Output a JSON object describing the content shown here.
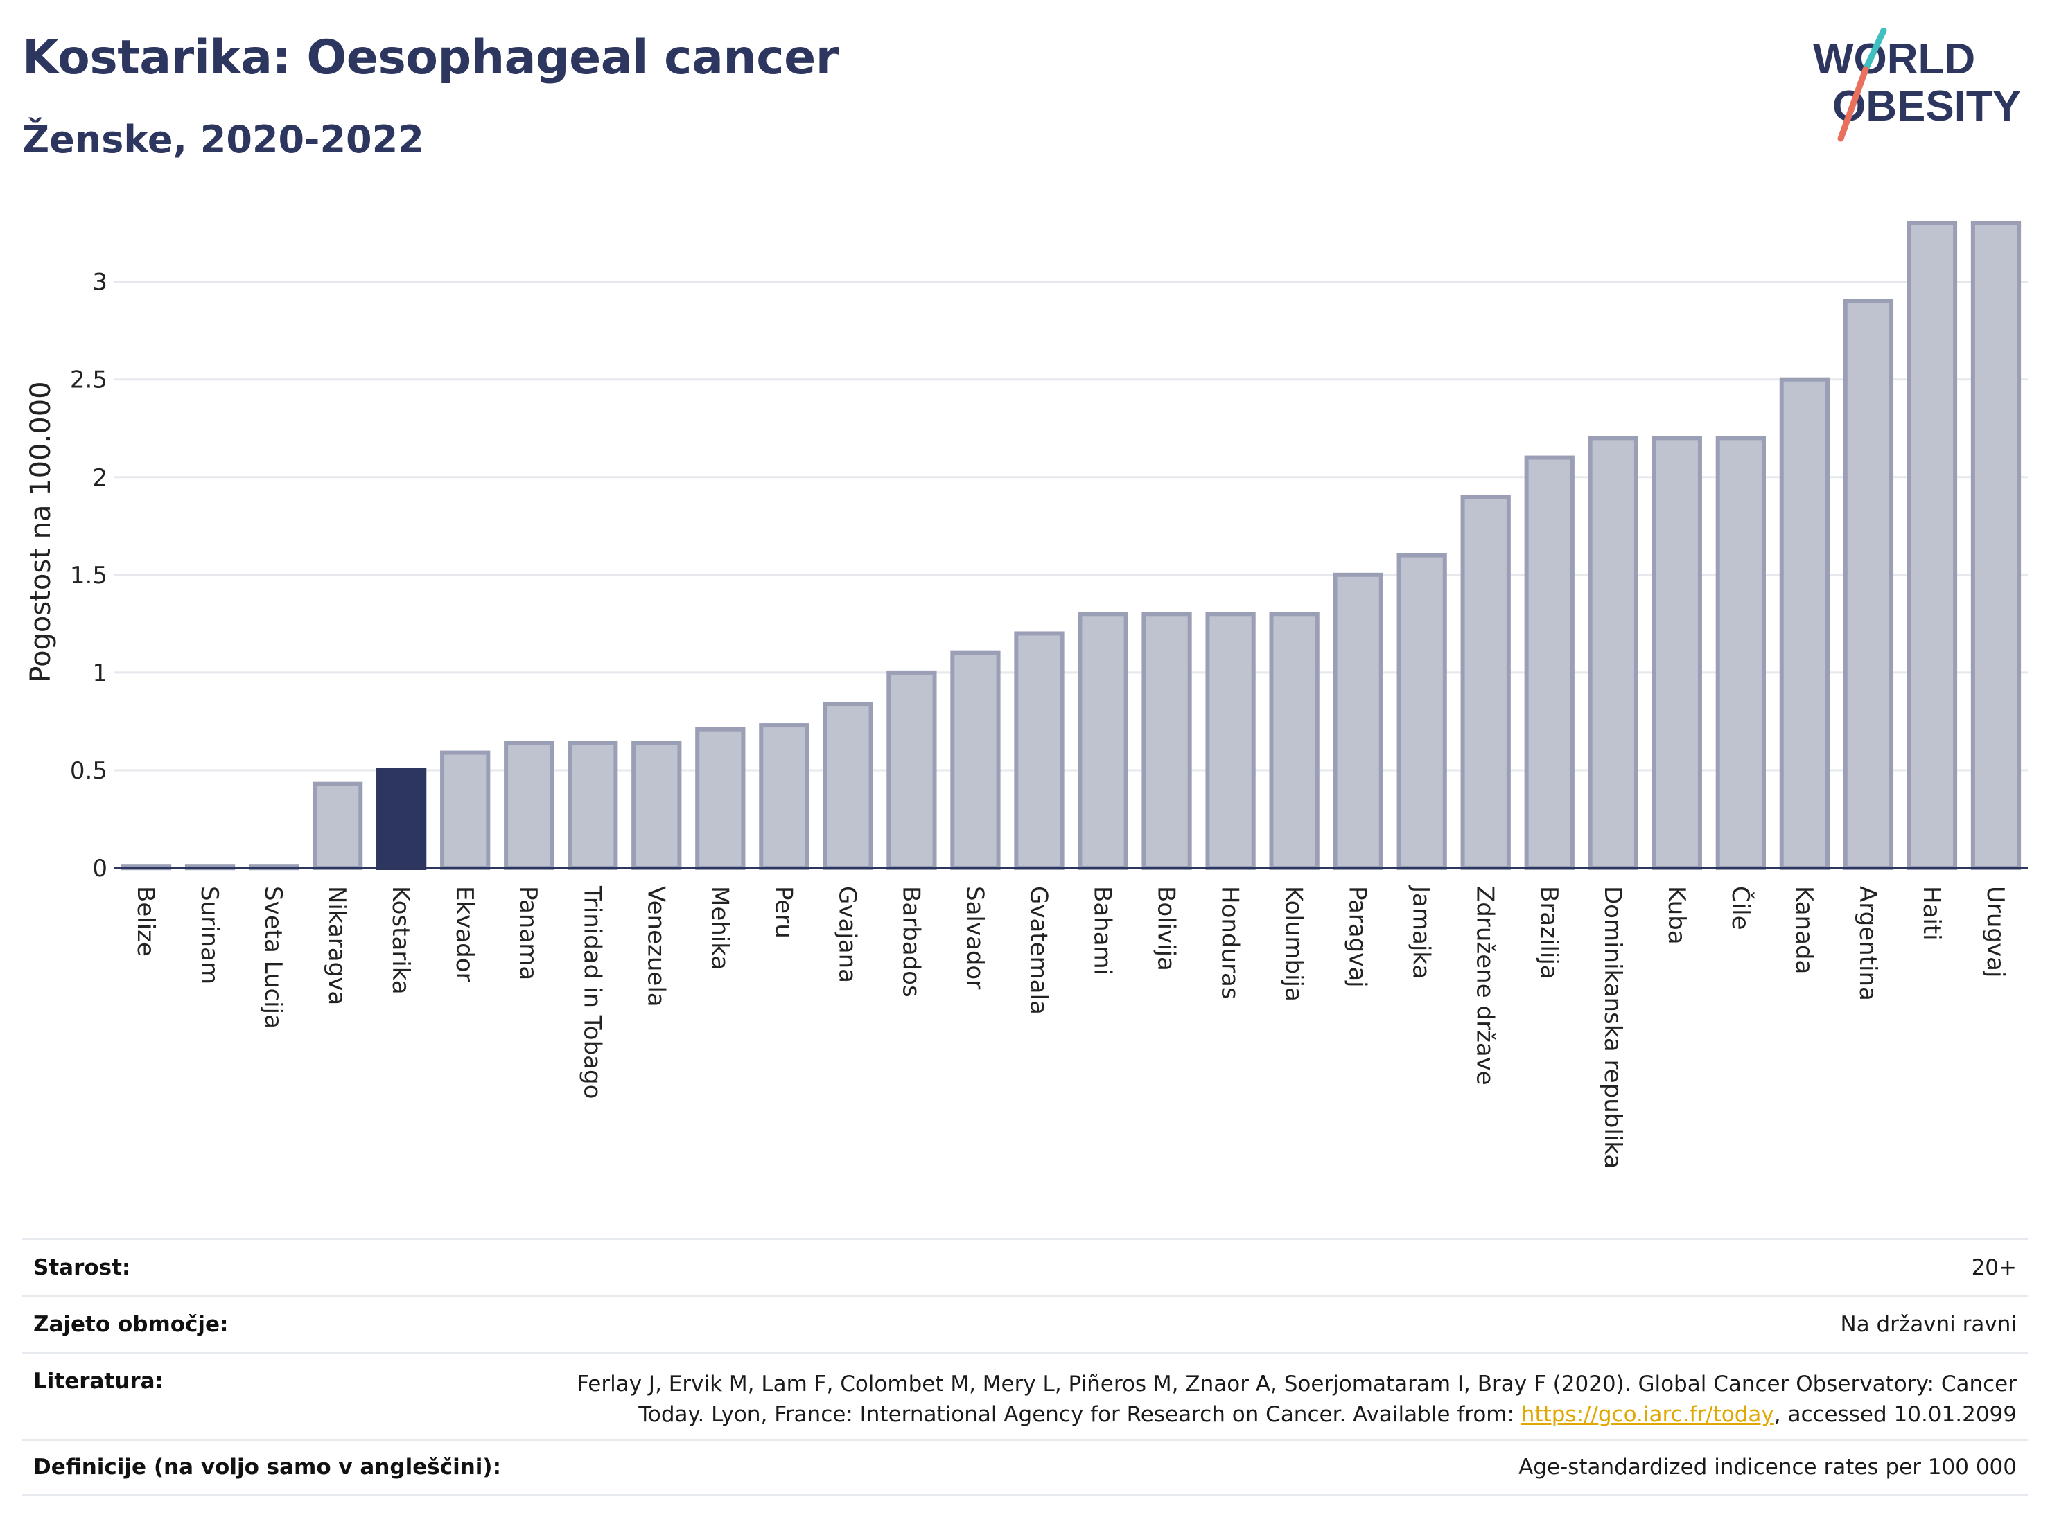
{
  "header": {
    "title": "Kostarika: Oesophageal cancer",
    "subtitle": "Ženske, 2020-2022"
  },
  "logo": {
    "line1": "WORLD",
    "line2": "OBESITY"
  },
  "chart_data": {
    "type": "bar",
    "title": "Kostarika: Oesophageal cancer",
    "subtitle": "Ženske, 2020-2022",
    "xlabel": "",
    "ylabel": "Pogostost na 100.000",
    "ylim": [
      0,
      3.3
    ],
    "yticks": [
      0,
      0.5,
      1,
      1.5,
      2,
      2.5,
      3
    ],
    "ytick_labels": [
      "0",
      "0.5",
      "1",
      "1.5",
      "2",
      "2.5",
      "3"
    ],
    "grid": true,
    "highlight": "Kostarika",
    "colors": {
      "bar": "#bfc2cf",
      "bar_stroke": "#9a9fb6",
      "highlight": "#2d365f",
      "grid": "#e6e8ee",
      "axis": "#2d365f"
    },
    "categories": [
      "Belize",
      "Surinam",
      "Sveta Lucija",
      "Nikaragva",
      "Kostarika",
      "Ekvador",
      "Panama",
      "Trinidad in Tobago",
      "Venezuela",
      "Mehika",
      "Peru",
      "Gvajana",
      "Barbados",
      "Salvador",
      "Gvatemala",
      "Bahami",
      "Bolivija",
      "Honduras",
      "Kolumbija",
      "Paragvaj",
      "Jamajka",
      "Združene države",
      "Brazilija",
      "Dominikanska republika",
      "Kuba",
      "Čile",
      "Kanada",
      "Argentina",
      "Haiti",
      "Urugvaj"
    ],
    "values": [
      0.01,
      0.01,
      0.01,
      0.43,
      0.5,
      0.59,
      0.64,
      0.64,
      0.64,
      0.71,
      0.73,
      0.84,
      1.0,
      1.1,
      1.2,
      1.3,
      1.3,
      1.3,
      1.3,
      1.5,
      1.6,
      1.9,
      2.1,
      2.2,
      2.2,
      2.2,
      2.5,
      2.9,
      3.3,
      3.3
    ]
  },
  "meta": {
    "age_label": "Starost:",
    "age_value": "20+",
    "area_label": "Zajeto območje:",
    "area_value": "Na državni ravni",
    "lit_label": "Literatura:",
    "lit_text_1": "Ferlay J, Ervik M, Lam F, Colombet M, Mery L, Piñeros M, Znaor A, Soerjomataram I, Bray F (2020). Global Cancer Observatory: Cancer",
    "lit_text_2a": "Today. Lyon, France: International Agency for Research on Cancer. Available from: ",
    "lit_link": "https://gco.iarc.fr/today",
    "lit_text_2b": ", accessed 10.01.2099",
    "def_label": "Definicije (na voljo samo v angleščini):",
    "def_value": "Age-standardized indicence rates per 100 000"
  }
}
